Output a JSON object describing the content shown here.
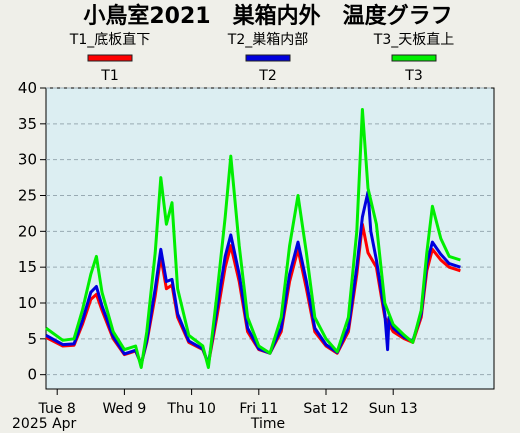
{
  "chart_data": {
    "type": "line",
    "title": "小鳥室2021　巣箱内外　温度グラフ",
    "xlabel": "Time",
    "date_label": "2025 Apr",
    "ylabel": "",
    "ylim": [
      -2,
      40
    ],
    "yticks": [
      0,
      5,
      10,
      15,
      20,
      25,
      30,
      35,
      40
    ],
    "grid": true,
    "legend_position": "top",
    "x_start": "2025-04-07T20:00",
    "x_end": "2025-04-14T12:00",
    "xticks": [
      {
        "label": "Tue 8",
        "time": "2025-04-08T00:00"
      },
      {
        "label": "Wed 9",
        "time": "2025-04-09T00:00"
      },
      {
        "label": "Thu 10",
        "time": "2025-04-10T00:00"
      },
      {
        "label": "Fri 11",
        "time": "2025-04-11T00:00"
      },
      {
        "label": "Sat 12",
        "time": "2025-04-12T00:00"
      },
      {
        "label": "Sun 13",
        "time": "2025-04-13T00:00"
      }
    ],
    "series": [
      {
        "name": "T1",
        "header": "T1_底板直下",
        "color": "#ff0000",
        "points": [
          [
            "2025-04-07T20:00",
            5.2
          ],
          [
            "2025-04-08T02:00",
            4.0
          ],
          [
            "2025-04-08T06:00",
            4.1
          ],
          [
            "2025-04-08T09:00",
            7.0
          ],
          [
            "2025-04-08T12:00",
            10.5
          ],
          [
            "2025-04-08T14:00",
            11.2
          ],
          [
            "2025-04-08T16:00",
            9.0
          ],
          [
            "2025-04-08T20:00",
            5.0
          ],
          [
            "2025-04-09T00:00",
            2.8
          ],
          [
            "2025-04-09T04:00",
            3.3
          ],
          [
            "2025-04-09T06:00",
            1.5
          ],
          [
            "2025-04-09T08:00",
            4.5
          ],
          [
            "2025-04-09T11:00",
            11.0
          ],
          [
            "2025-04-09T13:00",
            16.5
          ],
          [
            "2025-04-09T15:00",
            12.0
          ],
          [
            "2025-04-09T17:00",
            12.5
          ],
          [
            "2025-04-09T19:00",
            8.0
          ],
          [
            "2025-04-09T23:00",
            4.5
          ],
          [
            "2025-04-10T04:00",
            3.5
          ],
          [
            "2025-04-10T06:00",
            1.5
          ],
          [
            "2025-04-10T09:00",
            8.0
          ],
          [
            "2025-04-10T12:00",
            15.0
          ],
          [
            "2025-04-10T14:00",
            18.0
          ],
          [
            "2025-04-10T17:00",
            13.0
          ],
          [
            "2025-04-10T20:00",
            6.0
          ],
          [
            "2025-04-11T00:00",
            3.5
          ],
          [
            "2025-04-11T04:00",
            3.0
          ],
          [
            "2025-04-11T08:00",
            6.0
          ],
          [
            "2025-04-11T11:00",
            13.0
          ],
          [
            "2025-04-11T14:00",
            17.5
          ],
          [
            "2025-04-11T17:00",
            12.0
          ],
          [
            "2025-04-11T20:00",
            6.0
          ],
          [
            "2025-04-12T00:00",
            4.0
          ],
          [
            "2025-04-12T04:00",
            3.0
          ],
          [
            "2025-04-12T08:00",
            6.0
          ],
          [
            "2025-04-12T11:00",
            14.0
          ],
          [
            "2025-04-12T13:00",
            21.0
          ],
          [
            "2025-04-12T15:00",
            17.0
          ],
          [
            "2025-04-12T18:00",
            15.0
          ],
          [
            "2025-04-12T21:00",
            8.0
          ],
          [
            "2025-04-13T00:00",
            6.0
          ],
          [
            "2025-04-13T04:00",
            5.0
          ],
          [
            "2025-04-13T07:00",
            4.5
          ],
          [
            "2025-04-13T10:00",
            8.0
          ],
          [
            "2025-04-13T12:00",
            14.5
          ],
          [
            "2025-04-13T14:00",
            17.5
          ],
          [
            "2025-04-13T17:00",
            16.0
          ],
          [
            "2025-04-13T20:00",
            15.0
          ],
          [
            "2025-04-14T00:00",
            14.5
          ]
        ]
      },
      {
        "name": "T2",
        "header": "T2_巣箱内部",
        "color": "#0000dd",
        "points": [
          [
            "2025-04-07T20:00",
            5.5
          ],
          [
            "2025-04-08T02:00",
            4.2
          ],
          [
            "2025-04-08T06:00",
            4.3
          ],
          [
            "2025-04-08T09:00",
            7.5
          ],
          [
            "2025-04-08T12:00",
            11.5
          ],
          [
            "2025-04-08T14:00",
            12.3
          ],
          [
            "2025-04-08T16:00",
            9.6
          ],
          [
            "2025-04-08T20:00",
            5.3
          ],
          [
            "2025-04-09T00:00",
            2.9
          ],
          [
            "2025-04-09T04:00",
            3.4
          ],
          [
            "2025-04-09T06:00",
            1.4
          ],
          [
            "2025-04-09T08:00",
            4.8
          ],
          [
            "2025-04-09T11:00",
            12.0
          ],
          [
            "2025-04-09T13:00",
            17.5
          ],
          [
            "2025-04-09T15:00",
            13.0
          ],
          [
            "2025-04-09T17:00",
            13.3
          ],
          [
            "2025-04-09T19:00",
            8.5
          ],
          [
            "2025-04-09T23:00",
            4.7
          ],
          [
            "2025-04-10T04:00",
            3.6
          ],
          [
            "2025-04-10T06:00",
            1.5
          ],
          [
            "2025-04-10T09:00",
            9.0
          ],
          [
            "2025-04-10T12:00",
            16.5
          ],
          [
            "2025-04-10T14:00",
            19.5
          ],
          [
            "2025-04-10T17:00",
            14.0
          ],
          [
            "2025-04-10T20:00",
            6.5
          ],
          [
            "2025-04-11T00:00",
            3.6
          ],
          [
            "2025-04-11T04:00",
            3.0
          ],
          [
            "2025-04-11T08:00",
            6.5
          ],
          [
            "2025-04-11T11:00",
            14.0
          ],
          [
            "2025-04-11T14:00",
            18.5
          ],
          [
            "2025-04-11T17:00",
            13.0
          ],
          [
            "2025-04-11T20:00",
            6.5
          ],
          [
            "2025-04-12T00:00",
            4.2
          ],
          [
            "2025-04-12T04:00",
            3.1
          ],
          [
            "2025-04-12T08:00",
            6.5
          ],
          [
            "2025-04-12T11:00",
            15.0
          ],
          [
            "2025-04-12T13:00",
            22.0
          ],
          [
            "2025-04-12T15:00",
            25.5
          ],
          [
            "2025-04-12T16:00",
            20.0
          ],
          [
            "2025-04-12T18:00",
            16.0
          ],
          [
            "2025-04-12T21:00",
            8.5
          ],
          [
            "2025-04-12T22:00",
            3.5
          ],
          [
            "2025-04-12T22:30",
            8.0
          ],
          [
            "2025-04-13T00:00",
            6.5
          ],
          [
            "2025-04-13T04:00",
            5.2
          ],
          [
            "2025-04-13T07:00",
            4.7
          ],
          [
            "2025-04-13T10:00",
            8.5
          ],
          [
            "2025-04-13T12:00",
            15.5
          ],
          [
            "2025-04-13T14:00",
            18.5
          ],
          [
            "2025-04-13T17:00",
            16.8
          ],
          [
            "2025-04-13T20:00",
            15.5
          ],
          [
            "2025-04-14T00:00",
            15.0
          ]
        ]
      },
      {
        "name": "T3",
        "header": "T3_天板直上",
        "color": "#00ee00",
        "points": [
          [
            "2025-04-07T20:00",
            6.5
          ],
          [
            "2025-04-08T02:00",
            4.8
          ],
          [
            "2025-04-08T06:00",
            5.0
          ],
          [
            "2025-04-08T09:00",
            9.0
          ],
          [
            "2025-04-08T12:00",
            14.0
          ],
          [
            "2025-04-08T14:00",
            16.5
          ],
          [
            "2025-04-08T16:00",
            11.5
          ],
          [
            "2025-04-08T20:00",
            6.0
          ],
          [
            "2025-04-09T00:00",
            3.5
          ],
          [
            "2025-04-09T04:00",
            4.0
          ],
          [
            "2025-04-09T06:00",
            1.0
          ],
          [
            "2025-04-09T08:00",
            6.0
          ],
          [
            "2025-04-09T11:00",
            17.0
          ],
          [
            "2025-04-09T13:00",
            27.5
          ],
          [
            "2025-04-09T15:00",
            21.0
          ],
          [
            "2025-04-09T17:00",
            24.0
          ],
          [
            "2025-04-09T19:00",
            12.0
          ],
          [
            "2025-04-09T23:00",
            5.5
          ],
          [
            "2025-04-10T04:00",
            4.0
          ],
          [
            "2025-04-10T06:00",
            1.0
          ],
          [
            "2025-04-10T09:00",
            11.0
          ],
          [
            "2025-04-10T12:00",
            22.0
          ],
          [
            "2025-04-10T14:00",
            30.5
          ],
          [
            "2025-04-10T17:00",
            18.0
          ],
          [
            "2025-04-10T20:00",
            8.0
          ],
          [
            "2025-04-11T00:00",
            4.0
          ],
          [
            "2025-04-11T04:00",
            3.0
          ],
          [
            "2025-04-11T08:00",
            8.0
          ],
          [
            "2025-04-11T11:00",
            18.0
          ],
          [
            "2025-04-11T14:00",
            25.0
          ],
          [
            "2025-04-11T17:00",
            17.0
          ],
          [
            "2025-04-11T20:00",
            8.0
          ],
          [
            "2025-04-12T00:00",
            5.0
          ],
          [
            "2025-04-12T04:00",
            3.2
          ],
          [
            "2025-04-12T08:00",
            8.0
          ],
          [
            "2025-04-12T11:00",
            20.0
          ],
          [
            "2025-04-12T13:00",
            37.0
          ],
          [
            "2025-04-12T15:00",
            26.0
          ],
          [
            "2025-04-12T18:00",
            21.0
          ],
          [
            "2025-04-12T21:00",
            10.0
          ],
          [
            "2025-04-13T00:00",
            7.0
          ],
          [
            "2025-04-13T04:00",
            5.5
          ],
          [
            "2025-04-13T07:00",
            4.5
          ],
          [
            "2025-04-13T10:00",
            9.0
          ],
          [
            "2025-04-13T12:00",
            17.0
          ],
          [
            "2025-04-13T14:00",
            23.5
          ],
          [
            "2025-04-13T17:00",
            19.0
          ],
          [
            "2025-04-13T20:00",
            16.5
          ],
          [
            "2025-04-14T00:00",
            16.0
          ]
        ]
      }
    ]
  }
}
